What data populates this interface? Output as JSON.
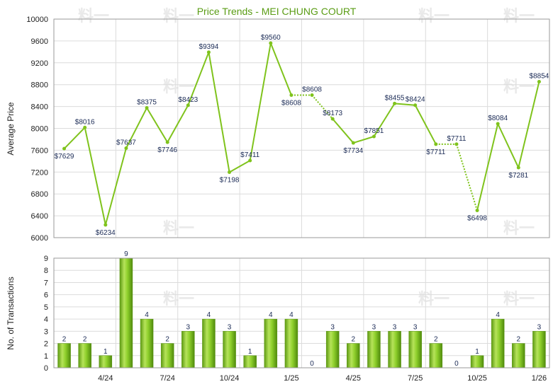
{
  "title": "Price Trends - MEI CHUNG COURT",
  "chart_data": [
    {
      "type": "line",
      "ylabel": "Average Price",
      "ylim": [
        6000,
        10000
      ],
      "yticks": [
        6000,
        6400,
        6800,
        7200,
        7600,
        8000,
        8400,
        8800,
        9200,
        9600,
        10000
      ],
      "color": "#7fc31c",
      "points": [
        {
          "i": 0,
          "value": 7629,
          "label": "$7629"
        },
        {
          "i": 1,
          "value": 8016,
          "label": "$8016"
        },
        {
          "i": 2,
          "value": 6234,
          "label": "$6234"
        },
        {
          "i": 3,
          "value": 7637,
          "label": "$7637"
        },
        {
          "i": 4,
          "value": 8375,
          "label": "$8375"
        },
        {
          "i": 5,
          "value": 7746,
          "label": "$7746"
        },
        {
          "i": 6,
          "value": 8423,
          "label": "$8423"
        },
        {
          "i": 7,
          "value": 9394,
          "label": "$9394"
        },
        {
          "i": 8,
          "value": 7198,
          "label": "$7198"
        },
        {
          "i": 9,
          "value": 7411,
          "label": "$7411"
        },
        {
          "i": 10,
          "value": 9560,
          "label": "$9560"
        },
        {
          "i": 11,
          "value": 8608,
          "label": "$8608"
        },
        {
          "i": 12,
          "value": 8608,
          "label": "$8608",
          "interpolated": true
        },
        {
          "i": 13,
          "value": 8173,
          "label": "$8173"
        },
        {
          "i": 14,
          "value": 7734,
          "label": "$7734"
        },
        {
          "i": 15,
          "value": 7851,
          "label": "$7851"
        },
        {
          "i": 16,
          "value": 8455,
          "label": "$8455"
        },
        {
          "i": 17,
          "value": 8424,
          "label": "$8424"
        },
        {
          "i": 18,
          "value": 7711,
          "label": "$7711"
        },
        {
          "i": 19,
          "value": 7711,
          "label": "$7711",
          "interpolated": true
        },
        {
          "i": 20,
          "value": 6498,
          "label": "$6498"
        },
        {
          "i": 21,
          "value": 8084,
          "label": "$8084"
        },
        {
          "i": 22,
          "value": 7281,
          "label": "$7281"
        },
        {
          "i": 23,
          "value": 8854,
          "label": "$8854"
        }
      ]
    },
    {
      "type": "bar",
      "ylabel": "No. of Transactions",
      "ylim": [
        0,
        9
      ],
      "yticks": [
        0,
        1,
        2,
        3,
        4,
        5,
        6,
        7,
        8,
        9
      ],
      "color": "#7fc31c",
      "values": [
        2,
        2,
        1,
        9,
        4,
        2,
        3,
        4,
        3,
        1,
        4,
        4,
        0,
        3,
        2,
        3,
        3,
        3,
        2,
        0,
        1,
        4,
        2,
        3
      ],
      "x_tick_labels": [
        {
          "after_index": 2,
          "label": "4/24"
        },
        {
          "after_index": 5,
          "label": "7/24"
        },
        {
          "after_index": 8,
          "label": "10/24"
        },
        {
          "after_index": 11,
          "label": "1/25"
        },
        {
          "after_index": 14,
          "label": "4/25"
        },
        {
          "after_index": 17,
          "label": "7/25"
        },
        {
          "after_index": 20,
          "label": "10/25"
        },
        {
          "after_index": 23,
          "label": "1/26"
        }
      ]
    }
  ]
}
